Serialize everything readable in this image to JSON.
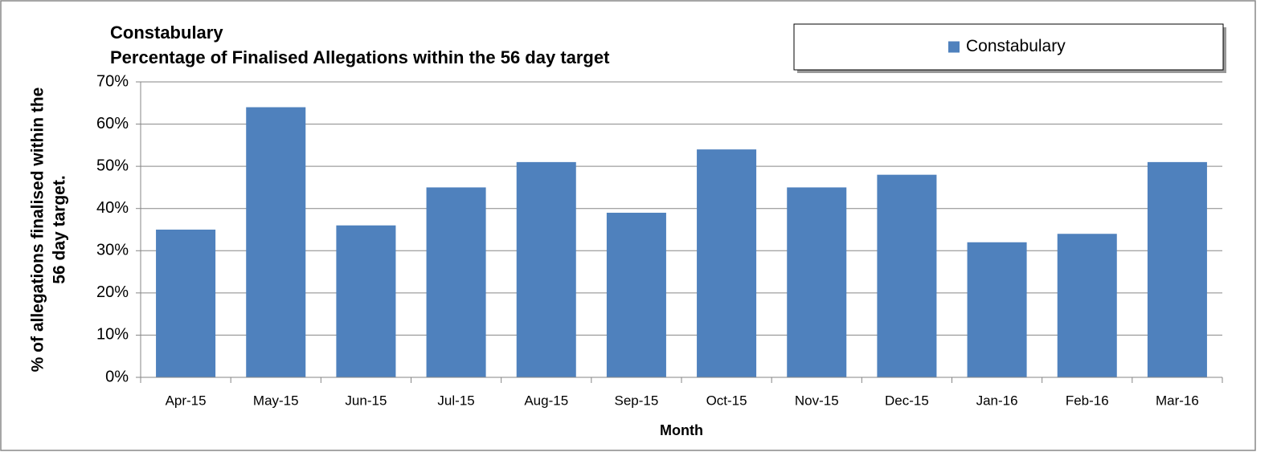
{
  "chart_data": {
    "type": "bar",
    "title": "Constabulary",
    "subtitle": "Percentage of Finalised Allegations within the 56 day target",
    "xlabel": "Month",
    "ylabel": [
      "% of allegations finalised within the",
      "56 day target."
    ],
    "categories": [
      "Apr-15",
      "May-15",
      "Jun-15",
      "Jul-15",
      "Aug-15",
      "Sep-15",
      "Oct-15",
      "Nov-15",
      "Dec-15",
      "Jan-16",
      "Feb-16",
      "Mar-16"
    ],
    "series": [
      {
        "name": "Constabulary",
        "color": "#4f81bd",
        "values": [
          35,
          64,
          36,
          45,
          51,
          39,
          54,
          45,
          48,
          32,
          34,
          51
        ]
      }
    ],
    "ylim": [
      0,
      70
    ],
    "yticks": [
      {
        "value": 0,
        "label": "0%"
      },
      {
        "value": 10,
        "label": "10%"
      },
      {
        "value": 20,
        "label": "20%"
      },
      {
        "value": 30,
        "label": "30%"
      },
      {
        "value": 40,
        "label": "40%"
      },
      {
        "value": 50,
        "label": "50%"
      },
      {
        "value": 60,
        "label": "60%"
      },
      {
        "value": 70,
        "label": "70%"
      }
    ],
    "grid": true,
    "legend": "top-right"
  }
}
